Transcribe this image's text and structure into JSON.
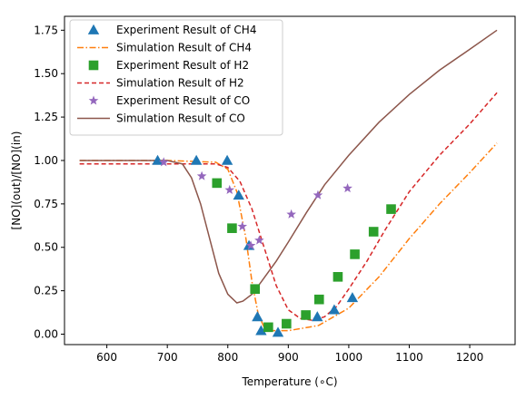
{
  "chart_data": {
    "type": "scatter",
    "xlabel": "Temperature (∘C)",
    "ylabel": "[NO](out)/[NO](in)",
    "xlim": [
      530,
      1275
    ],
    "ylim": [
      -0.06,
      1.83
    ],
    "xticks": [
      600,
      700,
      800,
      900,
      1000,
      1100,
      1200
    ],
    "yticks": [
      0.0,
      0.25,
      0.5,
      0.75,
      1.0,
      1.25,
      1.5,
      1.75
    ],
    "grid": false,
    "legend_position": "top-left",
    "series": [
      {
        "name": "Experiment Result of CH4",
        "kind": "scatter",
        "marker": "triangle",
        "color": "#1f77b4",
        "points": [
          [
            684,
            1.0
          ],
          [
            748,
            1.0
          ],
          [
            799,
            1.0
          ],
          [
            818,
            0.8
          ],
          [
            835,
            0.51
          ],
          [
            849,
            0.1
          ],
          [
            855,
            0.02
          ],
          [
            883,
            0.01
          ],
          [
            948,
            0.1
          ],
          [
            976,
            0.14
          ],
          [
            1006,
            0.21
          ]
        ]
      },
      {
        "name": "Simulation Result of CH4",
        "kind": "line",
        "style": "dashdot",
        "color": "#ff7f0e",
        "points": [
          [
            555,
            1.0
          ],
          [
            700,
            1.0
          ],
          [
            780,
            0.99
          ],
          [
            800,
            0.95
          ],
          [
            815,
            0.82
          ],
          [
            830,
            0.55
          ],
          [
            840,
            0.3
          ],
          [
            850,
            0.12
          ],
          [
            860,
            0.04
          ],
          [
            875,
            0.02
          ],
          [
            900,
            0.02
          ],
          [
            950,
            0.05
          ],
          [
            1000,
            0.15
          ],
          [
            1050,
            0.33
          ],
          [
            1100,
            0.55
          ],
          [
            1150,
            0.75
          ],
          [
            1200,
            0.93
          ],
          [
            1245,
            1.1
          ]
        ]
      },
      {
        "name": "Experiment Result of H2",
        "kind": "scatter",
        "marker": "square",
        "color": "#2ca02c",
        "points": [
          [
            782,
            0.87
          ],
          [
            807,
            0.61
          ],
          [
            845,
            0.26
          ],
          [
            867,
            0.04
          ],
          [
            897,
            0.06
          ],
          [
            929,
            0.11
          ],
          [
            951,
            0.2
          ],
          [
            982,
            0.33
          ],
          [
            1010,
            0.46
          ],
          [
            1041,
            0.59
          ],
          [
            1070,
            0.72
          ]
        ]
      },
      {
        "name": "Simulation Result of H2",
        "kind": "line",
        "style": "dashed",
        "color": "#d62728",
        "points": [
          [
            555,
            0.98
          ],
          [
            700,
            0.98
          ],
          [
            780,
            0.98
          ],
          [
            800,
            0.96
          ],
          [
            820,
            0.88
          ],
          [
            840,
            0.72
          ],
          [
            860,
            0.5
          ],
          [
            880,
            0.28
          ],
          [
            900,
            0.14
          ],
          [
            920,
            0.09
          ],
          [
            940,
            0.08
          ],
          [
            960,
            0.1
          ],
          [
            980,
            0.16
          ],
          [
            1000,
            0.26
          ],
          [
            1030,
            0.42
          ],
          [
            1060,
            0.6
          ],
          [
            1100,
            0.82
          ],
          [
            1150,
            1.03
          ],
          [
            1200,
            1.21
          ],
          [
            1245,
            1.39
          ]
        ]
      },
      {
        "name": "Experiment Result of CO",
        "kind": "scatter",
        "marker": "star",
        "color": "#9467bd",
        "points": [
          [
            694,
            0.99
          ],
          [
            757,
            0.91
          ],
          [
            803,
            0.83
          ],
          [
            824,
            0.62
          ],
          [
            838,
            0.51
          ],
          [
            852,
            0.54
          ],
          [
            905,
            0.69
          ],
          [
            949,
            0.8
          ],
          [
            998,
            0.84
          ]
        ]
      },
      {
        "name": "Simulation Result of CO",
        "kind": "line",
        "style": "solid",
        "color": "#8c564b",
        "points": [
          [
            555,
            1.0
          ],
          [
            700,
            1.0
          ],
          [
            725,
            0.98
          ],
          [
            740,
            0.9
          ],
          [
            755,
            0.75
          ],
          [
            770,
            0.55
          ],
          [
            785,
            0.35
          ],
          [
            800,
            0.23
          ],
          [
            815,
            0.18
          ],
          [
            825,
            0.19
          ],
          [
            840,
            0.23
          ],
          [
            855,
            0.3
          ],
          [
            880,
            0.42
          ],
          [
            900,
            0.53
          ],
          [
            930,
            0.7
          ],
          [
            960,
            0.86
          ],
          [
            1000,
            1.03
          ],
          [
            1050,
            1.22
          ],
          [
            1100,
            1.38
          ],
          [
            1150,
            1.52
          ],
          [
            1200,
            1.64
          ],
          [
            1245,
            1.75
          ]
        ]
      }
    ]
  }
}
